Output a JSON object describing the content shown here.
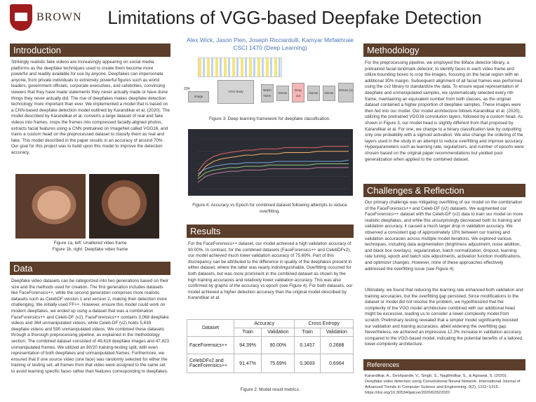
{
  "header": {
    "logo_text": "BROWN",
    "title": "Limitations of VGG-based Deepfake Detection",
    "authors": "Alex Wick, Jason Pien, Joseph Ricciardulli, Kamyar Mirfakhraie",
    "course": "CSCI 1470 (Deep Learning)"
  },
  "introduction": {
    "heading": "Introduction",
    "body": "Strikingly realistic fake videos are increasingly appearing on social media platforms as the deepfake techniques used to create them become more powerful and readily available for use by anyone. Deepfakes can impersonate anyone, from private individuals to extremely powerful figures such as world leaders, government officials, corporate executives, and celebrities, convincing viewers that they have made statements they never actually made or have done things they never actually did. The rise of deepfakes makes deepfake detection technology more important than ever. We implemented a model that is based on a CNN-based deepfake detection model outlined by Karandikar et al. (2020). The model described by Karandikar et al. converts a large dataset of real and fake videos into frames, crops the frames into compressed facially-aligned photos, extracts facial features using a CNN pretrained on ImageNet called VGG16, and trains a custom head on the preprocessed dataset to classify them as real and fake. This model described in the paper results in an accuracy of around 70%. Our goal for this project was to build upon this model to improve the detection accuracy."
  },
  "figure1": {
    "caption_a": "Figure 1a, left: Unaltered video frame",
    "caption_b": "Figure 1b, right: Deepfake video frame"
  },
  "data_section": {
    "heading": "Data",
    "body": "Deepfake video datasets can be categorized into two generations based on their size and the methods used for creation. The first generation includes datasets like FaceForensics++, while the second generation comprises more realistic datasets such as CelebDF version 1 and version 2, making their detection more challenging. We initially used FF++. However, ensure this model could work on modern deepfakes, we ended up using a dataset that was a combination FaceForensics++ and Celeb-DF (v2). FaceForensics++ contains 3,068 deepfake videos and 364 unmanipulated videos, while Celeb-DF (v2) holds 5,639 deepfake videos and 590 unmanipulated videos. We combined these datasets through a thorough preprocessing pipeline, as explained in the methodology section. The combined dataset consisted of 49,618 deepfake images and 47,823 unmanipulated frames. We utilized an 80/20 training-testing split, with even representation of both deepfakes and unmanipulated frames. Furthermore, we ensured that if one source video (one face) was randomly selected for either the training or testing set, all frames from that video were assigned to the same set to avoid learning specific faces rather than features corresponding to deepfakes."
  },
  "figure3": {
    "caption": "Figure 3: Deep learning framework for deepfake classification.",
    "dim_top": "224",
    "dim_left": "224",
    "image_label": "Image",
    "vgg_label": "VGG Body",
    "batch_norm": "Batch Norm",
    "dense": "Dense",
    "dropout": "Drop out",
    "dense_out": "Dense (1)"
  },
  "figure4": {
    "caption": "Figure 4: Accuracy vs Epoch for combined dataset following attempts to reduce overfitting."
  },
  "results": {
    "heading": "Results",
    "body": "For the FaceForensics++ dataset, our model achieved a high validation accuracy of 90.00%. In contrast, for the combined datasets (FaceForensics++ and CelebDFv2), our model achieved much lower validation accuracy of 75.69%. Part of this discrepancy can be attributed to the difference in quality of the deepfakes present in either dataset, where the latter was nearly indistinguishable. Overfitting occurred for both datasets, but was more prominent in the combined dataset as shown by the high training accuracies and relatively lower validation accuracy. This was also confirmed by graphs of the accuracy vs epoch (see Figure 4). For both datasets, our model achieved a higher detection accuracy than the original model described by Karandikar et al.",
    "table": {
      "col_dataset": "Dataset",
      "col_accuracy": "Accuracy",
      "col_entropy": "Cross Entropy",
      "sub_train": "Train",
      "sub_validation": "Validation",
      "rows": [
        {
          "name": "FaceForensics++",
          "acc_train": "94.39%",
          "acc_val": "90.00%",
          "ce_train": "0.1457",
          "ce_val": "0.2688"
        },
        {
          "name": "CelebDFv2 and FaceForensics++",
          "acc_train": "91.47%",
          "acc_val": "75.69%",
          "ce_train": "0.3693",
          "ce_val": "0.6964"
        }
      ]
    },
    "table_caption": "Figure 2: Model result metrics."
  },
  "methodology": {
    "heading": "Methodology",
    "body": "For the preprocessing pipeline, we employed the libface detector library, a pretrained facial landmark detector, to identify faces in each video frame and utilize bounding boxes to crop the images, focusing on the facial region with an additional 30% margin. Subsequent alignment of all facial frames was performed using the cv2 library to standardize the data. To ensure equal representation of deepfake and unmanipulated samples, we systematically selected every nth frame, maintaining an equivalent number from both classes, as the original dataset contained a higher proportion of deepfake samples. These images were then fed into our model. Our model architecture follows Karandikar et al. (2020), utilizing the pretrained VGG16 convolution layers, followed by a custom head. As shown in Figure 3, our model head is slightly different from that proposed by Karandikar et al. For one, we change to a binary classification task by outputting only one probability with a sigmoid activation. We also change the ordering of the layers used in the study in an attempt to reduce overfitting and improve accuracy. Hyperparameters such as learning rate, regularizers, and number of epochs were chosen based on the original paper recommendations but yielded poor generalization when applied to the combined dataset."
  },
  "challenges": {
    "heading": "Challenges & Reflection",
    "body1": "Our primary challenge was mitigating overfitting of our model on the combination of the FaceForensics++ and Celeb-DF (v2) datasets. We augmented our FaceForensics++ dataset with the Celeb-DF (v2) data to train our model on more realistic deepfakes, and while this unsurprisingly decreased both its training and validation accuracy, it caused a much larger drop in validation accuracy. We observed a consistent gap of approximately 10% between our training and validation accuracies across multiple model iterations. We explored various techniques, including data augmentation (brightness adjustment, noise addition, and black box overlays), regularization, batch normalization, dropout, learning rate tuning, epoch and batch size adjustments, activation function modifications, and optimizer changes. However, none of these approaches effectively addressed the overfitting issue (see Figure 4).",
    "body2": "Ultimately, we found that reducing the learning rate enhanced both validation and training accuracies, but the overfitting gap persisted. Since modifications to the dataset or model did not resolve the problem, we hypothesized that the complexity of the VGG model architecture combined with our additional head might be excessive, leading us to consider a lower-complexity model from scratch. Preliminary testing revealed that a simpler model significantly boosted our validation and training accuracies, albeit widening the overfitting gap. Nevertheless, we achieved an impressive 12.3% increase in validation accuracy compared to the VGG-based model, indicating the potential benefits of a tailored, lower-complexity architecture."
  },
  "references": {
    "heading": "References",
    "body": "Karandikar, A., Deshpande, V., Singh, S., Nagbhidkar, S., & Agrawal, S. (2020). Deepfake video detection using Convolutional Neural Network. International Journal of Advanced Trends in Computer Science and Engineering, 9(2), 1311–1315. https://doi.org/10.30534/ijatcse/2020/62922020"
  },
  "colors": {
    "header_bg": "#5b3e2b",
    "author_blue": "#4a76b8",
    "brand_red": "#9e1b1e"
  },
  "chart_data": {
    "type": "line",
    "title": "",
    "xlabel": "",
    "ylabel": "",
    "x": [
      1,
      2,
      3,
      4,
      5,
      6,
      7,
      8,
      9,
      10,
      11,
      12,
      13,
      14,
      15,
      16,
      17,
      18,
      19,
      20
    ],
    "series": [
      {
        "values": [
          0.64,
          0.72,
          0.76,
          0.78,
          0.79,
          0.8,
          0.81,
          0.81,
          0.82,
          0.82,
          0.82,
          0.83,
          0.83,
          0.83,
          0.83,
          0.83,
          0.84,
          0.84,
          0.84,
          0.84
        ]
      },
      {
        "values": [
          0.62,
          0.66,
          0.68,
          0.69,
          0.7,
          0.7,
          0.71,
          0.71,
          0.71,
          0.71,
          0.72,
          0.72,
          0.72,
          0.72,
          0.72,
          0.72,
          0.72,
          0.72,
          0.72,
          0.73
        ]
      },
      {
        "values": [
          0.6,
          0.68,
          0.72,
          0.74,
          0.75,
          0.76,
          0.77,
          0.77,
          0.78,
          0.78,
          0.78,
          0.79,
          0.79,
          0.79,
          0.79,
          0.8,
          0.8,
          0.8,
          0.8,
          0.8
        ]
      },
      {
        "values": [
          0.58,
          0.63,
          0.65,
          0.66,
          0.67,
          0.67,
          0.68,
          0.68,
          0.68,
          0.69,
          0.69,
          0.69,
          0.69,
          0.69,
          0.69,
          0.7,
          0.7,
          0.7,
          0.7,
          0.7
        ]
      },
      {
        "values": [
          0.55,
          0.6,
          0.62,
          0.63,
          0.64,
          0.64,
          0.65,
          0.65,
          0.65,
          0.66,
          0.66,
          0.66,
          0.66,
          0.66,
          0.66,
          0.67,
          0.67,
          0.67,
          0.67,
          0.67
        ]
      }
    ],
    "colors": [
      "#e06666",
      "#6fa8dc",
      "#f6b26b",
      "#93c47d",
      "#c27ba0"
    ],
    "ylim": [
      0.5,
      0.9
    ]
  }
}
